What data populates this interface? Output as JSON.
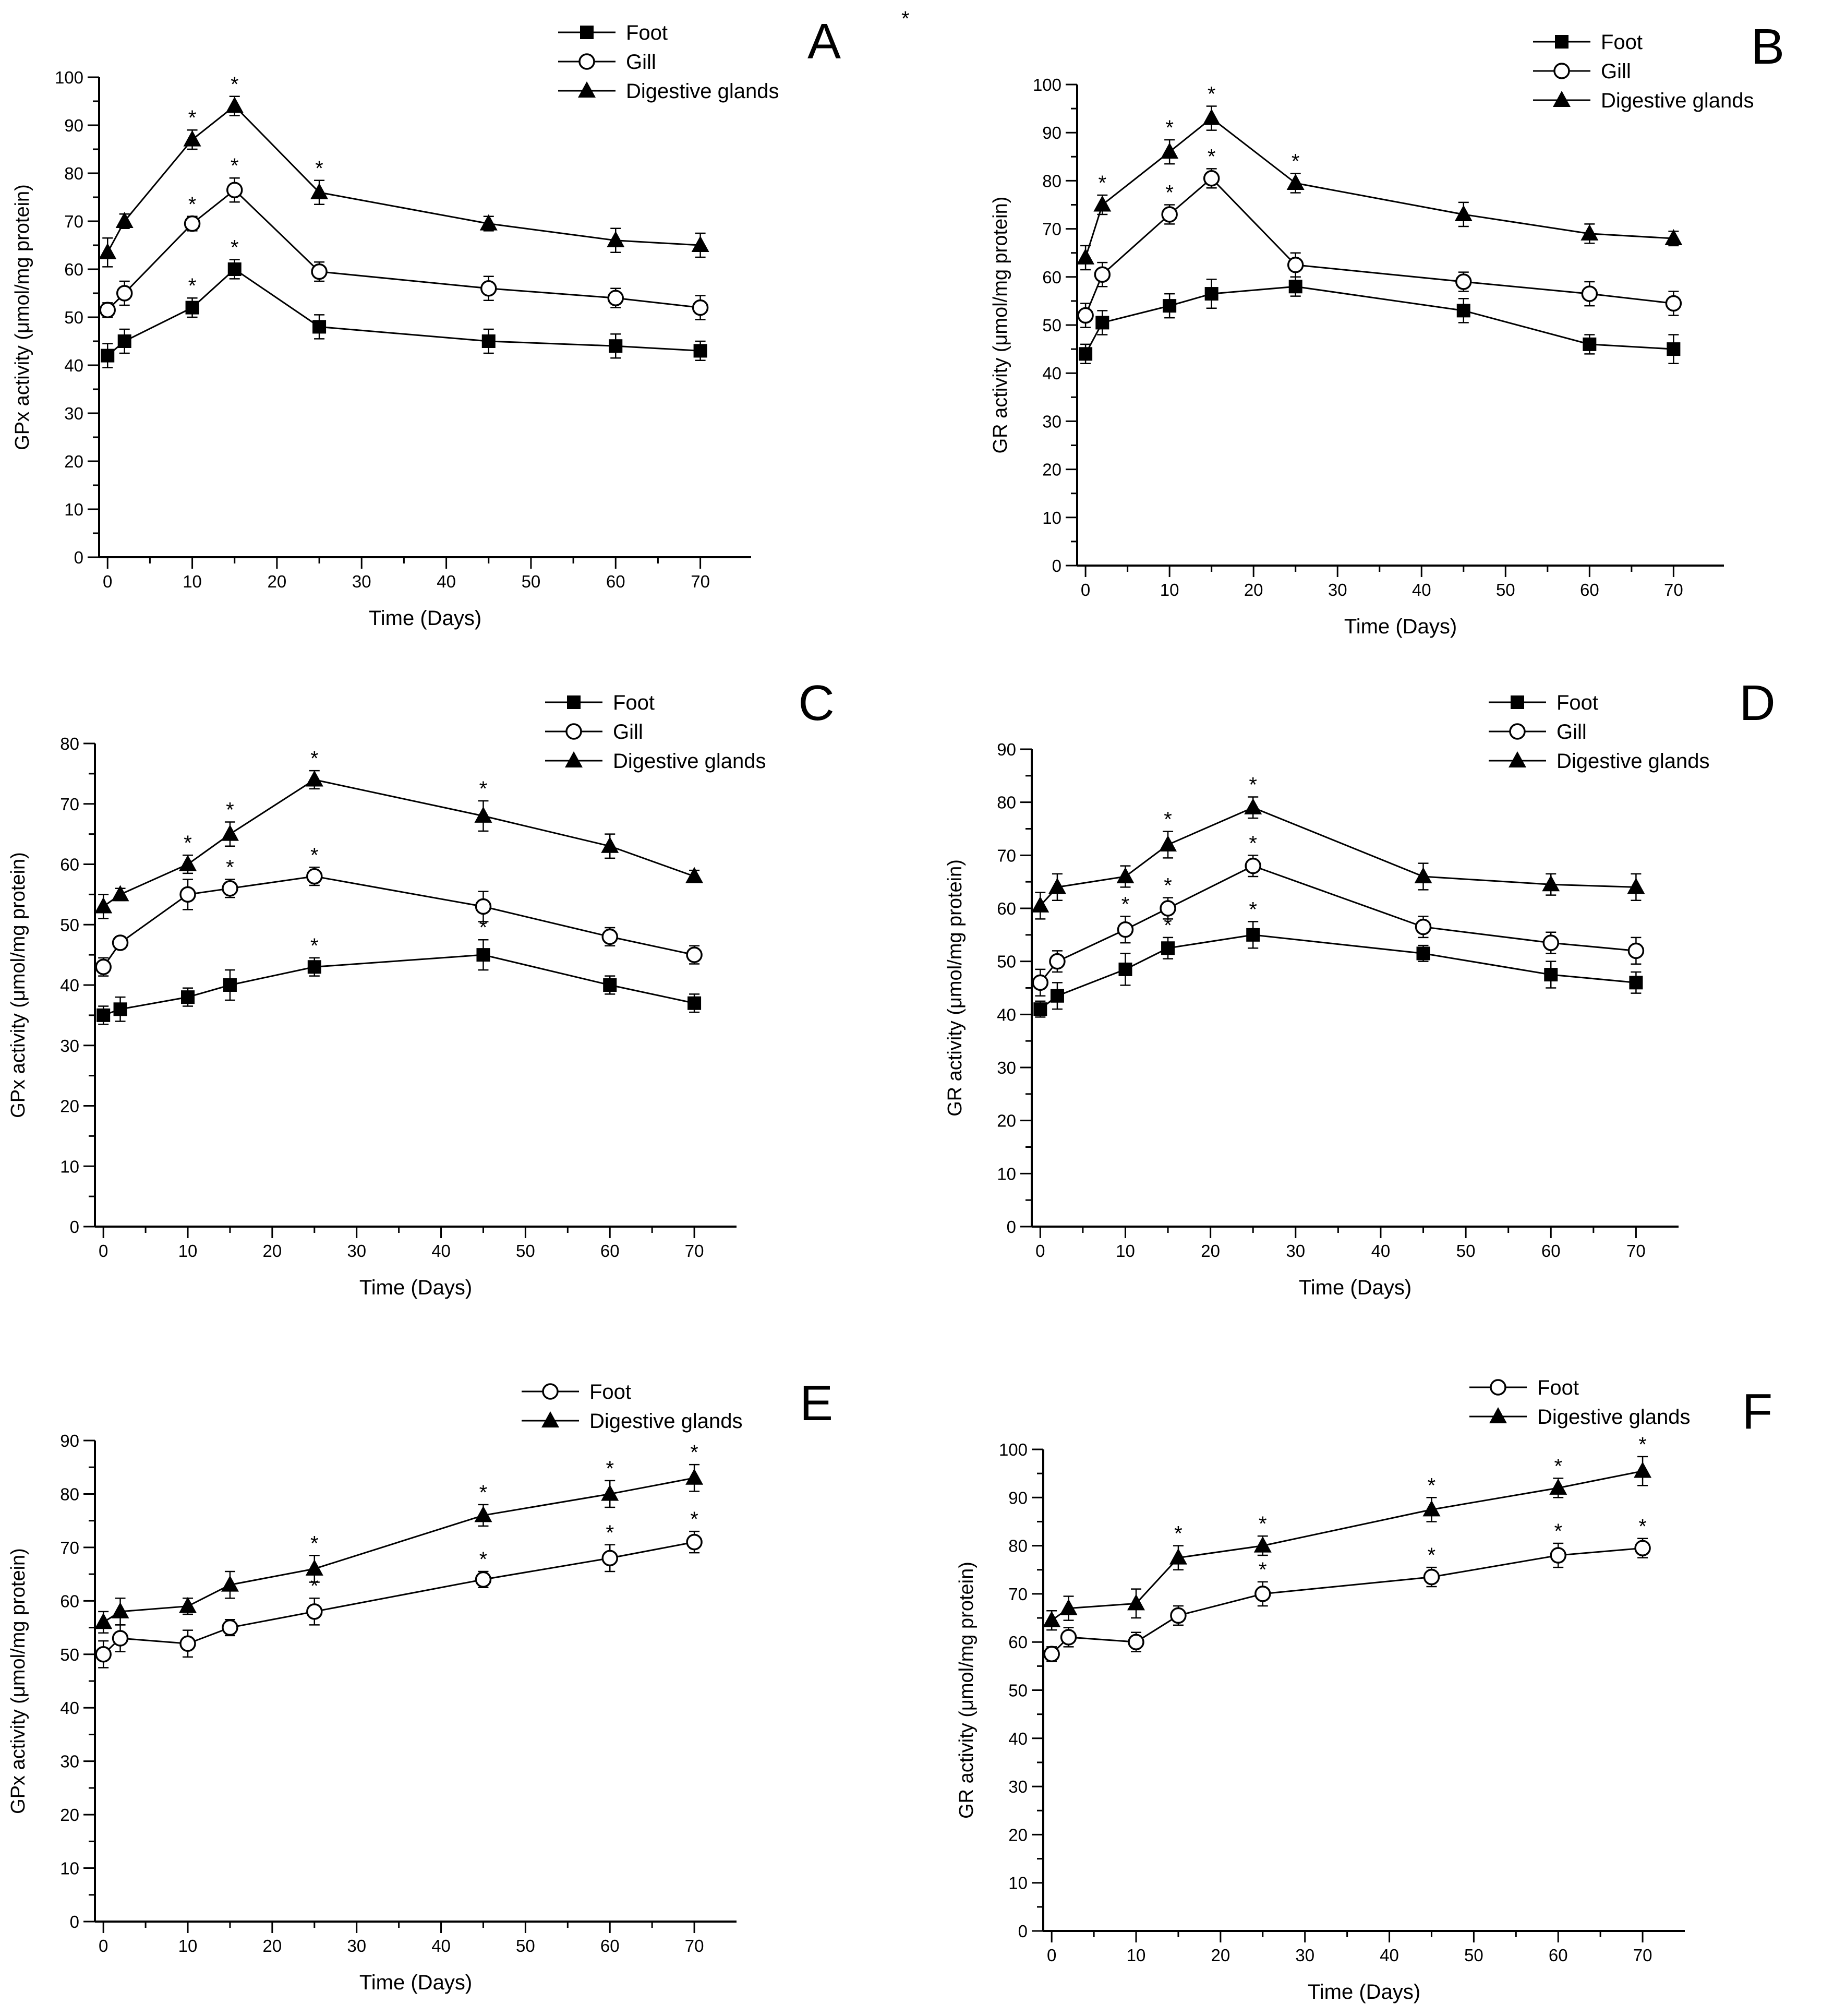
{
  "figure": {
    "stray_mark": "*"
  },
  "chart_data": [
    {
      "type": "line",
      "panel": "A",
      "xlabel": "Time (Days)",
      "ylabel": "GPx activity (μmol/mg protein)",
      "xlim": [
        -1,
        76
      ],
      "ylim": [
        0,
        100
      ],
      "xticks": [
        0,
        10,
        20,
        30,
        40,
        50,
        60,
        70
      ],
      "yticks": [
        0,
        10,
        20,
        30,
        40,
        50,
        60,
        70,
        80,
        90,
        100
      ],
      "x": [
        0,
        2,
        10,
        15,
        25,
        45,
        60,
        70
      ],
      "legend_position": "top-right",
      "series": [
        {
          "name": "Foot",
          "marker": "square",
          "values": [
            42,
            45,
            52,
            60,
            48,
            45,
            44,
            43
          ],
          "errors": [
            2.5,
            2.5,
            2,
            2,
            2.5,
            2.5,
            2.5,
            2
          ],
          "sig": [
            false,
            false,
            true,
            true,
            false,
            false,
            false,
            false
          ]
        },
        {
          "name": "Gill",
          "marker": "circle",
          "values": [
            51.5,
            55,
            69.5,
            76.5,
            59.5,
            56,
            54,
            52
          ],
          "errors": [
            1.5,
            2.5,
            1.5,
            2.5,
            2,
            2.5,
            2,
            2.5
          ],
          "sig": [
            false,
            false,
            true,
            true,
            false,
            false,
            false,
            false
          ]
        },
        {
          "name": "Digestive glands",
          "marker": "triangle",
          "values": [
            63.5,
            70,
            87,
            94,
            76,
            69.5,
            66,
            65
          ],
          "errors": [
            3,
            1.5,
            2,
            2,
            2.5,
            1.5,
            2.5,
            2.5
          ],
          "sig": [
            false,
            false,
            true,
            true,
            true,
            false,
            false,
            false
          ]
        }
      ]
    },
    {
      "type": "line",
      "panel": "B",
      "xlabel": "Time (Days)",
      "ylabel": "GR activity (μmol/mg protein)",
      "xlim": [
        -1,
        76
      ],
      "ylim": [
        0,
        100
      ],
      "xticks": [
        0,
        10,
        20,
        30,
        40,
        50,
        60,
        70
      ],
      "yticks": [
        0,
        10,
        20,
        30,
        40,
        50,
        60,
        70,
        80,
        90,
        100
      ],
      "x": [
        0,
        2,
        10,
        15,
        25,
        45,
        60,
        70
      ],
      "legend_position": "top-right",
      "series": [
        {
          "name": "Foot",
          "marker": "square",
          "values": [
            44,
            50.5,
            54,
            56.5,
            58,
            53,
            46,
            45
          ],
          "errors": [
            2,
            2.5,
            2.5,
            3,
            2,
            2.5,
            2,
            3
          ],
          "sig": [
            false,
            false,
            false,
            false,
            false,
            false,
            false,
            false
          ]
        },
        {
          "name": "Gill",
          "marker": "circle",
          "values": [
            52,
            60.5,
            73,
            80.5,
            62.5,
            59,
            56.5,
            54.5
          ],
          "errors": [
            2.5,
            2.5,
            2,
            2,
            2.5,
            2,
            2.5,
            2.5
          ],
          "sig": [
            false,
            false,
            true,
            true,
            false,
            false,
            false,
            false
          ]
        },
        {
          "name": "Digestive glands",
          "marker": "triangle",
          "values": [
            64,
            75,
            86,
            93,
            79.5,
            73,
            69,
            68
          ],
          "errors": [
            2.5,
            2,
            2.5,
            2.5,
            2,
            2.5,
            2,
            1.5
          ],
          "sig": [
            false,
            true,
            true,
            true,
            true,
            false,
            false,
            false
          ]
        }
      ]
    },
    {
      "type": "line",
      "panel": "C",
      "xlabel": "Time (Days)",
      "ylabel": "GPx activity (μmol/mg protein)",
      "xlim": [
        -1,
        75
      ],
      "ylim": [
        0,
        80
      ],
      "xticks": [
        0,
        10,
        20,
        30,
        40,
        50,
        60,
        70
      ],
      "yticks": [
        0,
        10,
        20,
        30,
        40,
        50,
        60,
        70,
        80
      ],
      "x": [
        0,
        2,
        10,
        15,
        25,
        45,
        60,
        70
      ],
      "legend_position": "top-right",
      "series": [
        {
          "name": "Foot",
          "marker": "square",
          "values": [
            35,
            36,
            38,
            40,
            43,
            45,
            40,
            37
          ],
          "errors": [
            1.5,
            2,
            1.5,
            2.5,
            1.5,
            2.5,
            1.5,
            1.5
          ],
          "sig": [
            false,
            false,
            false,
            false,
            true,
            true,
            false,
            false
          ]
        },
        {
          "name": "Gill",
          "marker": "circle",
          "values": [
            43,
            47,
            55,
            56,
            58,
            53,
            48,
            45
          ],
          "errors": [
            1.5,
            1,
            2.5,
            1.5,
            1.5,
            2.5,
            1.5,
            1.5
          ],
          "sig": [
            false,
            false,
            true,
            true,
            true,
            false,
            false,
            false
          ]
        },
        {
          "name": "Digestive glands",
          "marker": "triangle",
          "values": [
            53,
            55,
            60,
            65,
            74,
            68,
            63,
            58
          ],
          "errors": [
            2,
            1,
            1.5,
            2,
            1.5,
            2.5,
            2,
            1
          ],
          "sig": [
            false,
            false,
            true,
            true,
            true,
            true,
            false,
            false
          ]
        }
      ]
    },
    {
      "type": "line",
      "panel": "D",
      "xlabel": "Time (Days)",
      "ylabel": "GR activity (μmol/mg protein)",
      "xlim": [
        -1,
        75
      ],
      "ylim": [
        0,
        90
      ],
      "xticks": [
        0,
        10,
        20,
        30,
        40,
        50,
        60,
        70
      ],
      "yticks": [
        0,
        10,
        20,
        30,
        40,
        50,
        60,
        70,
        80,
        90
      ],
      "x": [
        0,
        2,
        10,
        15,
        25,
        45,
        60,
        70
      ],
      "legend_position": "top-right",
      "series": [
        {
          "name": "Foot",
          "marker": "square",
          "values": [
            41,
            43.5,
            48.5,
            52.5,
            55,
            51.5,
            47.5,
            46
          ],
          "errors": [
            1.5,
            2.5,
            3,
            2,
            2.5,
            1.5,
            2.5,
            2
          ],
          "sig": [
            false,
            false,
            false,
            true,
            true,
            false,
            false,
            false
          ]
        },
        {
          "name": "Gill",
          "marker": "circle",
          "values": [
            46,
            50,
            56,
            60,
            68,
            56.5,
            53.5,
            52
          ],
          "errors": [
            2.5,
            2,
            2.5,
            2,
            2,
            2,
            2,
            2.5
          ],
          "sig": [
            false,
            false,
            true,
            true,
            true,
            false,
            false,
            false
          ]
        },
        {
          "name": "Digestive glands",
          "marker": "triangle",
          "values": [
            60.5,
            64,
            66,
            72,
            79,
            66,
            64.5,
            64
          ],
          "errors": [
            2.5,
            2.5,
            2,
            2.5,
            2,
            2.5,
            2,
            2.5
          ],
          "sig": [
            false,
            false,
            false,
            true,
            true,
            false,
            false,
            false
          ]
        }
      ]
    },
    {
      "type": "line",
      "panel": "E",
      "xlabel": "Time (Days)",
      "ylabel": "GPx activity (μmol/mg protein)",
      "xlim": [
        -1,
        75
      ],
      "ylim": [
        0,
        90
      ],
      "xticks": [
        0,
        10,
        20,
        30,
        40,
        50,
        60,
        70
      ],
      "yticks": [
        0,
        10,
        20,
        30,
        40,
        50,
        60,
        70,
        80,
        90
      ],
      "x": [
        0,
        2,
        10,
        15,
        25,
        45,
        60,
        70
      ],
      "legend_position": "top-right",
      "series": [
        {
          "name": "Foot",
          "marker": "circle",
          "values": [
            50,
            53,
            52,
            55,
            58,
            64,
            68,
            71
          ],
          "errors": [
            2.5,
            2.5,
            2.5,
            1.5,
            2.5,
            1.5,
            2.5,
            2
          ],
          "sig": [
            false,
            false,
            false,
            false,
            true,
            true,
            true,
            true
          ]
        },
        {
          "name": "Digestive glands",
          "marker": "triangle",
          "values": [
            56,
            58,
            59,
            63,
            66,
            76,
            80,
            83
          ],
          "errors": [
            2,
            2.5,
            1.5,
            2.5,
            2.5,
            2,
            2.5,
            2.5
          ],
          "sig": [
            false,
            false,
            false,
            false,
            true,
            true,
            true,
            true
          ]
        }
      ]
    },
    {
      "type": "line",
      "panel": "F",
      "xlabel": "Time (Days)",
      "ylabel": "GR activity (μmol/mg protein)",
      "xlim": [
        -1,
        75
      ],
      "ylim": [
        0,
        100
      ],
      "xticks": [
        0,
        10,
        20,
        30,
        40,
        50,
        60,
        70
      ],
      "yticks": [
        0,
        10,
        20,
        30,
        40,
        50,
        60,
        70,
        80,
        90,
        100
      ],
      "x": [
        0,
        2,
        10,
        15,
        25,
        45,
        60,
        70
      ],
      "legend_position": "top-right",
      "series": [
        {
          "name": "Foot",
          "marker": "circle",
          "values": [
            57.5,
            61,
            60,
            65.5,
            70,
            73.5,
            78,
            79.5
          ],
          "errors": [
            1.5,
            2,
            2,
            2,
            2.5,
            2,
            2.5,
            2
          ],
          "sig": [
            false,
            false,
            false,
            false,
            true,
            true,
            true,
            true
          ]
        },
        {
          "name": "Digestive glands",
          "marker": "triangle",
          "values": [
            64.5,
            67,
            68,
            77.5,
            80,
            87.5,
            92,
            95.5
          ],
          "errors": [
            2,
            2.5,
            3,
            2.5,
            2,
            2.5,
            2,
            3
          ],
          "sig": [
            false,
            false,
            false,
            true,
            true,
            true,
            true,
            true
          ]
        }
      ]
    }
  ]
}
